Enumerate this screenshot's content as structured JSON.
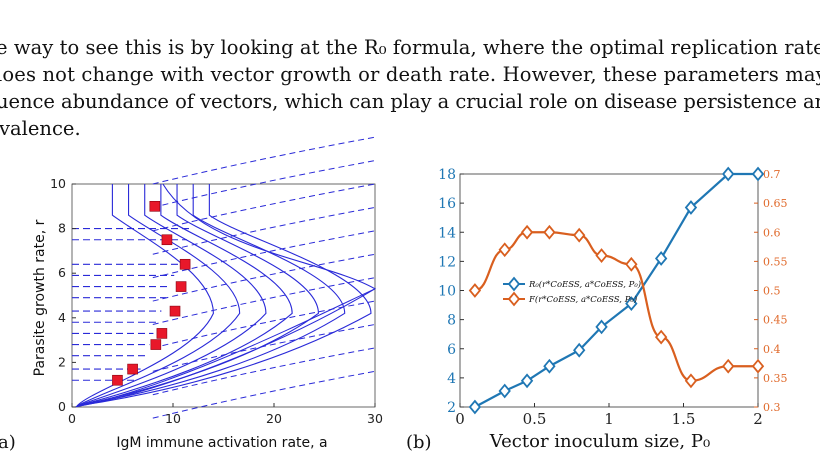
{
  "paragraph": {
    "lines": [
      "e way to see this is by looking at the R₀ formula, where the optimal replication rate",
      "loes not change with vector growth or death rate.  However, these parameters may",
      "uence abundance of vectors, which can play a crucial role on disease persistence and",
      "valence."
    ]
  },
  "figure_a": {
    "panel_label": "a)",
    "chart_data": {
      "type": "contour",
      "xlabel": "IgM immune activation rate, a",
      "ylabel": "Parasite growth rate, r",
      "xlim": [
        0,
        30
      ],
      "ylim": [
        0,
        10
      ],
      "xticks": [
        "0",
        "10",
        "20",
        "30"
      ],
      "yticks": [
        "0",
        "2",
        "4",
        "6",
        "8",
        "10"
      ],
      "marked_points": [
        {
          "x": 4.5,
          "y": 1.2
        },
        {
          "x": 6.0,
          "y": 1.7
        },
        {
          "x": 8.3,
          "y": 2.8
        },
        {
          "x": 8.9,
          "y": 3.3
        },
        {
          "x": 10.2,
          "y": 4.3
        },
        {
          "x": 10.8,
          "y": 5.4
        },
        {
          "x": 11.2,
          "y": 6.4
        },
        {
          "x": 9.4,
          "y": 7.5
        },
        {
          "x": 8.2,
          "y": 9.0
        }
      ],
      "grid": false
    }
  },
  "figure_b": {
    "panel_label": "(b)",
    "chart_data": {
      "type": "line",
      "xlabel": "Vector inoculum size, P₀",
      "xlim": [
        0,
        2
      ],
      "ylim_left": [
        2,
        18
      ],
      "ylim_right": [
        0.3,
        0.7
      ],
      "xticks": [
        "0",
        "0.5",
        "1",
        "1.5",
        "2"
      ],
      "yticks_left": [
        "2",
        "4",
        "6",
        "8",
        "10",
        "12",
        "14",
        "16",
        "18"
      ],
      "yticks_right": [
        "0.3",
        "0.35",
        "0.4",
        "0.45",
        "0.5",
        "0.55",
        "0.6",
        "0.65",
        "0.7"
      ],
      "x": [
        0.1,
        0.3,
        0.45,
        0.6,
        0.8,
        0.95,
        1.15,
        1.35,
        1.55,
        1.8,
        2.0
      ],
      "series": [
        {
          "name": "R₀(r*CoESS, a*CoESS, P₀)",
          "axis": "left",
          "color": "#1f77b4",
          "values": [
            2.0,
            3.1,
            3.8,
            4.8,
            5.9,
            7.5,
            9.1,
            12.2,
            15.7,
            18.0,
            18.0
          ]
        },
        {
          "name": "F(r*CoESS, a*CoESS, P₀)",
          "axis": "right",
          "color": "#d95f1f",
          "values": [
            0.5,
            0.57,
            0.6,
            0.6,
            0.595,
            0.56,
            0.545,
            0.42,
            0.345,
            0.37,
            0.37
          ]
        }
      ],
      "legend_position": "center",
      "grid": false
    }
  }
}
